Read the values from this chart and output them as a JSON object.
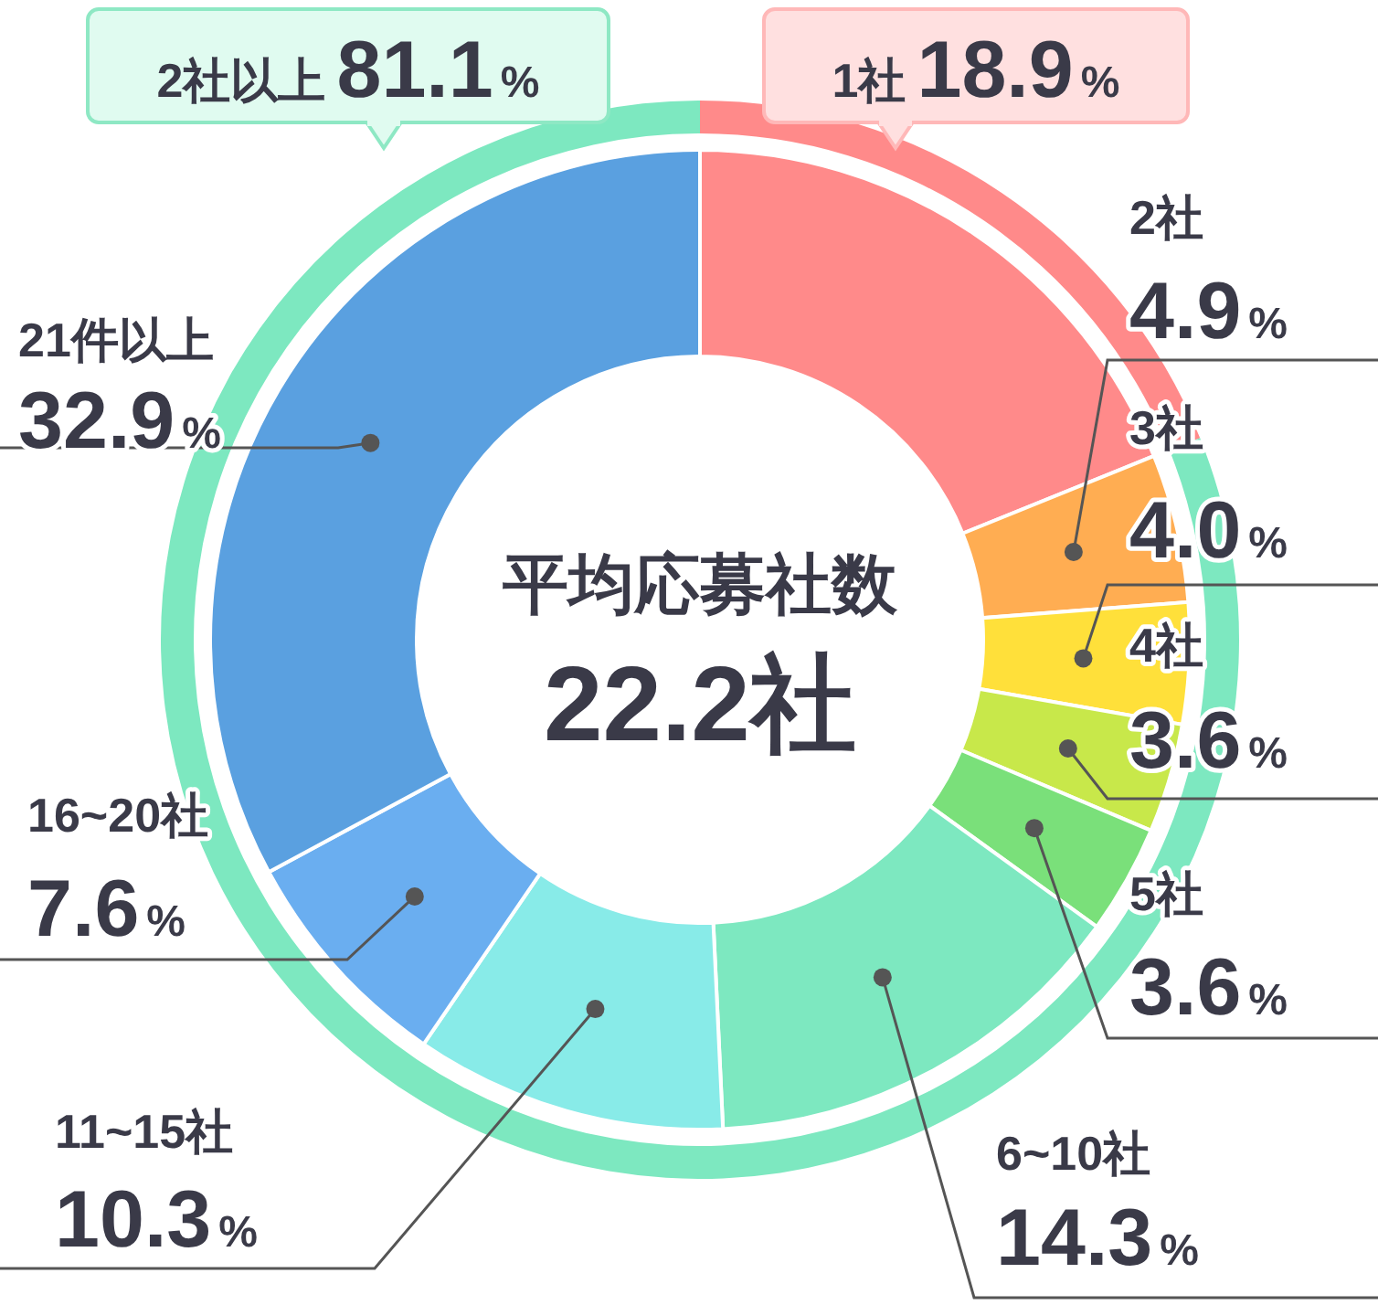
{
  "chart_data": [
    {
      "type": "donut",
      "legend": false,
      "annotations": [
        "平均応募社数",
        "22.2社"
      ],
      "categories": [
        null,
        "2社",
        "3社",
        "4社",
        "5社",
        "6~10社",
        "11~15社",
        "16~20社",
        "21件以上"
      ],
      "values": [
        18.9,
        4.9,
        4.0,
        3.6,
        3.6,
        14.3,
        10.3,
        7.6,
        32.9
      ],
      "value_labels": [
        null,
        "4.9%",
        "4.0%",
        "3.6%",
        "3.6%",
        "14.3%",
        "10.3%",
        "7.6%",
        "32.9%"
      ],
      "colors": [
        "#ff8a8a",
        "#ffad52",
        "#ffe03a",
        "#c8e84a",
        "#7ae07a",
        "#7de8c0",
        "#88ebe8",
        "#6aaef0",
        "#5aa0e0"
      ]
    },
    {
      "type": "donut",
      "legend": false,
      "categories": [
        "1社",
        "2社以上"
      ],
      "values": [
        18.9,
        81.1
      ],
      "value_labels": [
        "18.9%",
        "81.1%"
      ],
      "colors": [
        "#ff8a8a",
        "#7de8c0"
      ]
    }
  ]
}
